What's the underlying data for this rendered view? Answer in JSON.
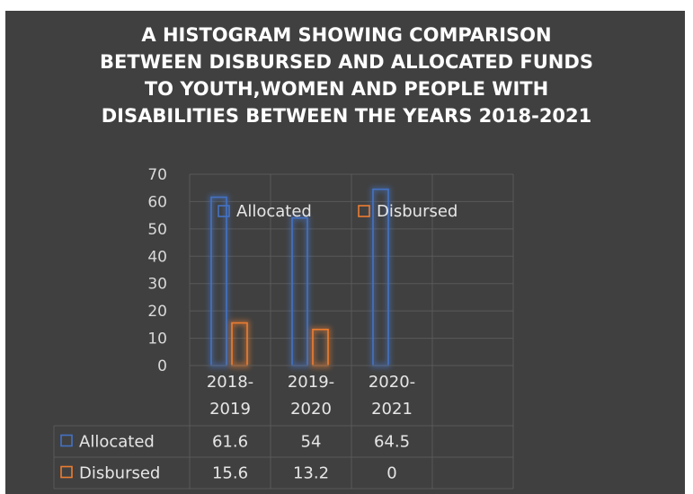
{
  "chart_data": {
    "type": "bar",
    "title_lines": [
      "A HISTOGRAM SHOWING COMPARISON",
      "BETWEEN DISBURSED AND ALLOCATED FUNDS",
      "TO YOUTH,WOMEN AND PEOPLE WITH",
      "DISABILITIES  BETWEEN THE YEARS 2018-2021"
    ],
    "categories": [
      [
        "2018-",
        "2019"
      ],
      [
        "2019-",
        "2020"
      ],
      [
        "2020-",
        "2021"
      ],
      [
        "",
        ""
      ]
    ],
    "series": [
      {
        "name": "Allocated",
        "color": "#4472c4",
        "values": [
          61.6,
          54,
          64.5,
          null
        ],
        "labels": [
          "61.6",
          "54",
          "64.5",
          ""
        ]
      },
      {
        "name": "Disbursed",
        "color": "#ed7d31",
        "values": [
          15.6,
          13.2,
          0,
          null
        ],
        "labels": [
          "15.6",
          "13.2",
          "0",
          ""
        ]
      }
    ],
    "y_ticks": [
      0,
      10,
      20,
      30,
      40,
      50,
      60,
      70
    ],
    "ylim": [
      0,
      70
    ],
    "grid": true,
    "legend": "top, inside plot",
    "data_table": true
  },
  "colors": {
    "background": "#404040",
    "text": "#ffffff",
    "grid": "#595959"
  }
}
